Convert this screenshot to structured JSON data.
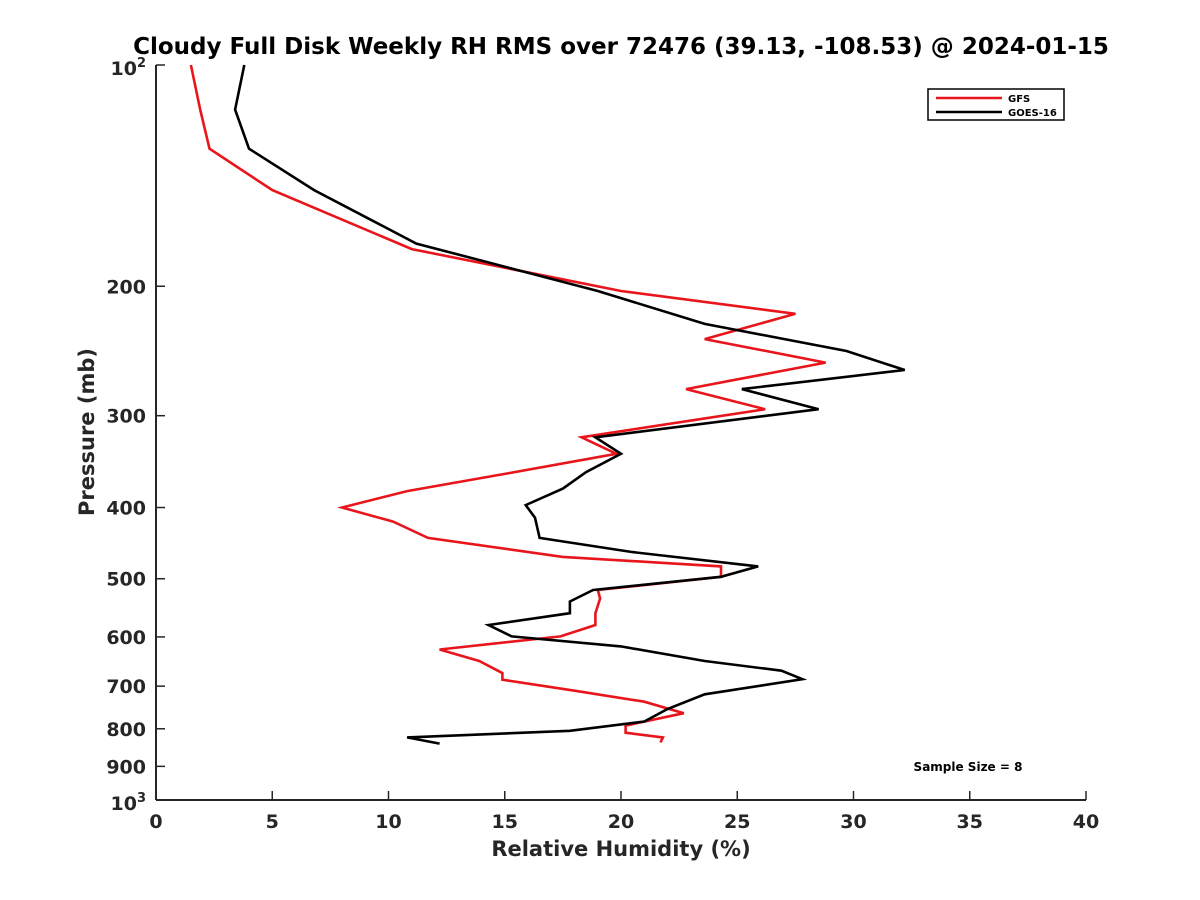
{
  "chart_data": {
    "type": "line",
    "title": "Cloudy Full Disk Weekly RH RMS over 72476 (39.13, -108.53) @ 2024-01-15",
    "xlabel": "Relative Humidity (%)",
    "ylabel": "Pressure (mb)",
    "xlim": [
      0,
      40
    ],
    "ylim": [
      100,
      1000
    ],
    "yscale": "log",
    "y_reversed": true,
    "x_ticks": [
      "0",
      "5",
      "10",
      "15",
      "20",
      "25",
      "30",
      "35",
      "40"
    ],
    "y_ticks": [
      {
        "value": 100,
        "base": "10",
        "exp": "2"
      },
      {
        "value": 200,
        "label": "200"
      },
      {
        "value": 300,
        "label": "300"
      },
      {
        "value": 400,
        "label": "400"
      },
      {
        "value": 500,
        "label": "500"
      },
      {
        "value": 600,
        "label": "600"
      },
      {
        "value": 700,
        "label": "700"
      },
      {
        "value": 800,
        "label": "800"
      },
      {
        "value": 900,
        "label": "900"
      },
      {
        "value": 1000,
        "base": "10",
        "exp": "3"
      }
    ],
    "grid": false,
    "legend_position": "top-right",
    "annotation": "Sample Size = 8",
    "series": [
      {
        "name": "GFS",
        "color": "#e8161c",
        "points": [
          [
            1.5,
            100
          ],
          [
            1.9,
            115
          ],
          [
            2.3,
            130
          ],
          [
            5.0,
            148
          ],
          [
            11.0,
            178
          ],
          [
            20.0,
            203
          ],
          [
            27.5,
            218
          ],
          [
            23.6,
            236
          ],
          [
            28.8,
            254
          ],
          [
            22.8,
            276
          ],
          [
            26.2,
            294
          ],
          [
            18.3,
            321
          ],
          [
            19.8,
            338
          ],
          [
            15.0,
            360
          ],
          [
            10.8,
            380
          ],
          [
            8.0,
            400
          ],
          [
            10.2,
            418
          ],
          [
            11.7,
            440
          ],
          [
            17.5,
            467
          ],
          [
            24.3,
            481
          ],
          [
            24.3,
            497
          ],
          [
            19.0,
            518
          ],
          [
            19.1,
            532
          ],
          [
            18.9,
            557
          ],
          [
            18.9,
            578
          ],
          [
            17.4,
            599
          ],
          [
            12.2,
            624
          ],
          [
            13.9,
            647
          ],
          [
            14.9,
            672
          ],
          [
            14.9,
            686
          ],
          [
            18.0,
            710
          ],
          [
            21.0,
            735
          ],
          [
            22.7,
            762
          ],
          [
            20.2,
            792
          ],
          [
            20.2,
            810
          ],
          [
            21.8,
            822
          ],
          [
            21.7,
            835
          ]
        ]
      },
      {
        "name": "GOES-16",
        "color": "#000000",
        "points": [
          [
            3.8,
            100
          ],
          [
            3.4,
            115
          ],
          [
            4.0,
            130
          ],
          [
            6.8,
            148
          ],
          [
            11.2,
            175
          ],
          [
            19.0,
            203
          ],
          [
            23.6,
            225
          ],
          [
            29.7,
            245
          ],
          [
            32.2,
            260
          ],
          [
            25.2,
            276
          ],
          [
            28.5,
            294
          ],
          [
            18.9,
            321
          ],
          [
            20.0,
            338
          ],
          [
            18.5,
            358
          ],
          [
            17.5,
            377
          ],
          [
            15.9,
            397
          ],
          [
            16.3,
            413
          ],
          [
            16.5,
            440
          ],
          [
            20.5,
            460
          ],
          [
            25.9,
            481
          ],
          [
            24.3,
            497
          ],
          [
            18.8,
            518
          ],
          [
            17.8,
            537
          ],
          [
            17.8,
            557
          ],
          [
            14.3,
            578
          ],
          [
            15.3,
            599
          ],
          [
            20.0,
            618
          ],
          [
            23.6,
            647
          ],
          [
            26.9,
            667
          ],
          [
            27.8,
            685
          ],
          [
            23.6,
            718
          ],
          [
            22.0,
            752
          ],
          [
            21.0,
            782
          ],
          [
            17.8,
            805
          ],
          [
            10.8,
            822
          ],
          [
            12.2,
            838
          ]
        ]
      }
    ]
  }
}
